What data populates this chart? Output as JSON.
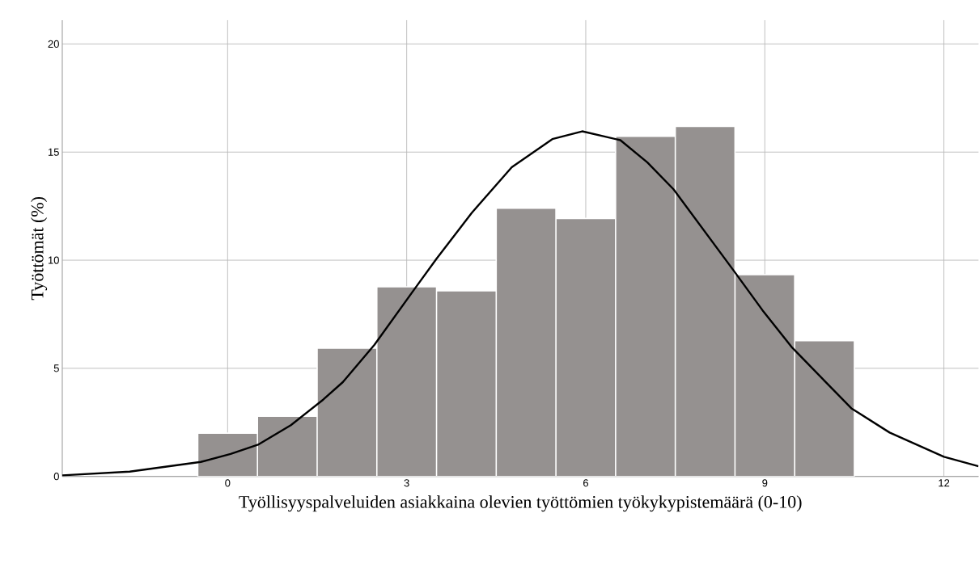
{
  "chart_data": {
    "type": "histogram",
    "xlabel": "Työllisyyspalveluiden asiakkaina olevien työttömien työkykypistemäärä (0-10)",
    "ylabel": "Työttömät (%)",
    "bins": [
      -0.5,
      0.5,
      1.5,
      2.5,
      3.5,
      4.5,
      5.5,
      6.5,
      7.5,
      8.5,
      9.5,
      10.5
    ],
    "values": [
      2.0,
      2.78,
      5.93,
      8.77,
      8.58,
      12.4,
      11.93,
      15.73,
      16.19,
      9.33,
      6.28
    ],
    "color": "#959190",
    "xlim": [
      -2.77,
      12.58
    ],
    "ylim": [
      0,
      21.1
    ],
    "xticks": [
      0,
      3,
      6,
      9,
      12
    ],
    "yticks": [
      0,
      5,
      10,
      15,
      20
    ],
    "grid": true,
    "series": [
      {
        "type": "line",
        "color": "#000000",
        "x": [
          -2.77,
          -1.64,
          -0.45,
          0.05,
          0.52,
          1.06,
          1.6,
          1.93,
          2.46,
          3.14,
          3.5,
          4.09,
          4.76,
          5.44,
          5.94,
          6.58,
          7.03,
          7.47,
          8.47,
          8.96,
          9.46,
          10.45,
          11.09,
          12.0,
          12.58
        ],
        "values": [
          0.05,
          0.22,
          0.67,
          1.04,
          1.48,
          2.37,
          3.55,
          4.36,
          6.09,
          8.7,
          10.07,
          12.19,
          14.3,
          15.6,
          15.96,
          15.55,
          14.53,
          13.28,
          9.55,
          7.69,
          5.95,
          3.15,
          2.03,
          0.91,
          0.47
        ]
      }
    ]
  }
}
